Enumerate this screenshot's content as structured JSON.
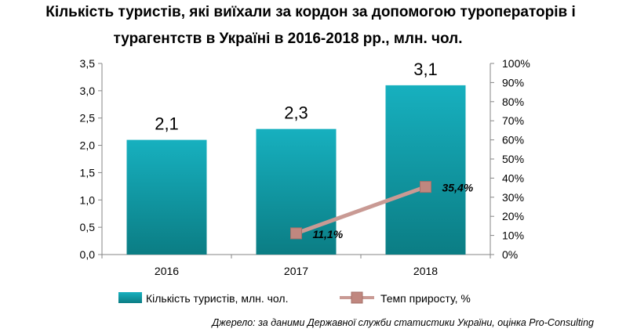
{
  "header": {
    "title_line1": "Кількість туристів, які виїхали за кордон за допомогою туроператорів і",
    "title_line2": "турагентств в Україні в 2016-2018 рр., млн. чол."
  },
  "source": "Джерело: за даними Державної служби статистики України, оцінка Pro-Consulting",
  "colors": {
    "bar_top": "#17b0bf",
    "bar_bottom": "#0b7d84",
    "line": "#c99a94",
    "marker": "#c0877f"
  },
  "chart_data": {
    "type": "bar",
    "categories": [
      "2016",
      "2017",
      "2018"
    ],
    "series": [
      {
        "name": "Кількість туристів, млн. чол.",
        "type": "bar",
        "axis": "left",
        "values": [
          2.1,
          2.3,
          3.1
        ],
        "labels": [
          "2,1",
          "2,3",
          "3,1"
        ]
      },
      {
        "name": "Темп приросту, %",
        "type": "line",
        "axis": "right",
        "values": [
          null,
          11.1,
          35.4
        ],
        "labels": [
          "",
          "11,1%",
          "35,4%"
        ]
      }
    ],
    "y_left": {
      "min": 0,
      "max": 3.5,
      "ticks": [
        "0,0",
        "0,5",
        "1,0",
        "1,5",
        "2,0",
        "2,5",
        "3,0",
        "3,5"
      ]
    },
    "y_right": {
      "min": 0,
      "max": 100,
      "ticks": [
        "0%",
        "10%",
        "20%",
        "30%",
        "40%",
        "50%",
        "60%",
        "70%",
        "80%",
        "90%",
        "100%"
      ]
    },
    "grid": false,
    "legend_position": "bottom"
  }
}
